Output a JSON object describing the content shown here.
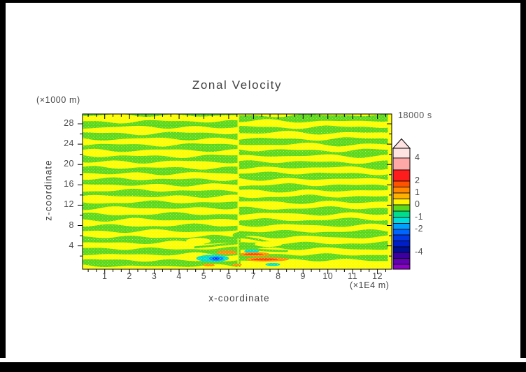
{
  "title": "Zonal Velocity",
  "time_label": "18000 s",
  "axes": {
    "x": {
      "label": "x-coordinate",
      "unit": "(×1E4 m)",
      "tick_labels": [
        "1",
        "2",
        "3",
        "4",
        "5",
        "6",
        "7",
        "8",
        "9",
        "10",
        "11",
        "12"
      ],
      "tick_values": [
        1,
        2,
        3,
        4,
        5,
        6,
        7,
        8,
        9,
        10,
        11,
        12
      ],
      "minor_step": 0.3333
    },
    "y": {
      "label": "z-coordinate",
      "unit": "(×1000 m)",
      "tick_labels": [
        "4",
        "8",
        "12",
        "16",
        "20",
        "24",
        "28"
      ],
      "tick_values": [
        4,
        8,
        12,
        16,
        20,
        24,
        28
      ],
      "minor_values": [
        2,
        6,
        10,
        14,
        18,
        22,
        26,
        30
      ]
    }
  },
  "colorbar": {
    "tick_labels": [
      {
        "text": "4",
        "py": 226
      },
      {
        "text": "2",
        "py": 259
      },
      {
        "text": "1",
        "py": 276
      },
      {
        "text": "0",
        "py": 293
      },
      {
        "text": "-1",
        "py": 311
      },
      {
        "text": "-2",
        "py": 328
      },
      {
        "text": "-4",
        "py": 361
      }
    ],
    "arrow_color": "#FFE2E2",
    "segments": [
      {
        "color": "#FFE2E2",
        "h": 14
      },
      {
        "color": "#FFA8A8",
        "h": 17
      },
      {
        "color": "#FF1C1C",
        "h": 16
      },
      {
        "color": "#FF5200",
        "h": 8.5
      },
      {
        "color": "#FF8800",
        "h": 8.5
      },
      {
        "color": "#FFB000",
        "h": 8.5
      },
      {
        "color": "#FCF400",
        "h": 8.5
      },
      {
        "color": "#5CD81A",
        "h": 9
      },
      {
        "color": "#00DC8C",
        "h": 9
      },
      {
        "color": "#00DCDC",
        "h": 8.5
      },
      {
        "color": "#00A0FF",
        "h": 8.5
      },
      {
        "color": "#0064FF",
        "h": 8
      },
      {
        "color": "#0038E6",
        "h": 8.5
      },
      {
        "color": "#001EC8",
        "h": 8.5
      },
      {
        "color": "#000F96",
        "h": 8
      },
      {
        "color": "#3C00A0",
        "h": 8.5
      },
      {
        "color": "#6400B4",
        "h": 8.5
      },
      {
        "color": "#8C00C8",
        "h": 7
      }
    ]
  },
  "chart_data": {
    "type": "heatmap",
    "title": "Zonal Velocity",
    "xlabel": "x-coordinate (×1E4 m)",
    "ylabel": "z-coordinate (×1000 m)",
    "time": "18000 s",
    "x_range": [
      0.105,
      12.575
    ],
    "z_range": [
      -0.59,
      29.93
    ],
    "contour_levels_labeled": [
      4,
      2,
      1,
      0,
      -1,
      -2,
      -4
    ],
    "colors": {
      "positive_background": "#FDFD00",
      "negative_band": "#5CD81A",
      "grid_dots": "#FFFFFF"
    },
    "bands": {
      "half_width": 0.56,
      "seam_x": 6.42,
      "left_centers": [
        0.6,
        2.9,
        5.2,
        7.45,
        9.7,
        12.0,
        14.3,
        16.55,
        18.8,
        21.1,
        23.35,
        25.6,
        27.9,
        30.2
      ],
      "right_centers": [
        1.75,
        4.0,
        6.3,
        8.6,
        10.85,
        13.15,
        15.4,
        17.7,
        19.95,
        22.25,
        24.5,
        26.8,
        29.1
      ]
    },
    "fan": {
      "trunk": {
        "x": 6.44,
        "z_top": 6.4,
        "w": 2.5
      },
      "crown": {
        "cx": 6.44,
        "cz": 6.1,
        "rx": 0.28,
        "rz": 0.6
      },
      "fronds": [
        {
          "x1": 6.38,
          "z1": 5.7,
          "cx": 5.8,
          "cz": 5.5,
          "x2": 5.05,
          "z2": 4.5,
          "w": 3
        },
        {
          "x1": 6.32,
          "z1": 4.5,
          "cx": 5.6,
          "cz": 4.15,
          "x2": 4.65,
          "z2": 3.7,
          "w": 3
        },
        {
          "x1": 6.3,
          "z1": 3.4,
          "cx": 5.6,
          "cz": 3.0,
          "x2": 4.6,
          "z2": 2.95,
          "w": 3
        },
        {
          "x1": 6.5,
          "z1": 5.7,
          "cx": 7.05,
          "cz": 5.5,
          "x2": 7.75,
          "z2": 4.55,
          "w": 3
        },
        {
          "x1": 6.55,
          "z1": 4.55,
          "cx": 7.3,
          "cz": 4.2,
          "x2": 8.3,
          "z2": 3.8,
          "w": 3
        },
        {
          "x1": 6.58,
          "z1": 3.5,
          "cx": 7.3,
          "cz": 3.05,
          "x2": 8.35,
          "z2": 3.0,
          "w": 3
        }
      ]
    },
    "blobs": [
      {
        "cx": 5.35,
        "cz": 1.55,
        "rx": 0.66,
        "rz": 0.7,
        "color": "#00DFC8"
      },
      {
        "cx": 5.5,
        "cz": 1.5,
        "rx": 0.3,
        "rz": 0.42,
        "color": "#008CFF"
      },
      {
        "cx": 5.48,
        "cz": 1.5,
        "rx": 0.13,
        "rz": 0.2,
        "color": "#0030FF"
      },
      {
        "cx": 5.92,
        "cz": 2.7,
        "rx": 0.42,
        "rz": 0.38,
        "color": "#FF9100"
      },
      {
        "cx": 6.93,
        "cz": 2.95,
        "rx": 0.3,
        "rz": 0.33,
        "color": "#00DFC8"
      },
      {
        "cx": 7.05,
        "cz": 2.35,
        "rx": 0.62,
        "rz": 0.4,
        "color": "#FF9100"
      },
      {
        "cx": 7.0,
        "cz": 2.35,
        "rx": 0.4,
        "rz": 0.18,
        "color": "#FF4000"
      },
      {
        "cx": 7.55,
        "cz": 1.35,
        "rx": 0.88,
        "rz": 0.42,
        "color": "#FF9100"
      },
      {
        "cx": 7.45,
        "cz": 1.35,
        "rx": 0.55,
        "rz": 0.2,
        "color": "#FF4000"
      },
      {
        "cx": 7.78,
        "cz": 0.35,
        "rx": 0.3,
        "rz": 0.3,
        "color": "#00DFC8"
      },
      {
        "cx": 5.2,
        "cz": 0.22,
        "rx": 0.24,
        "rz": 0.25,
        "color": "#FF9100"
      },
      {
        "cx": 6.33,
        "cz": 0.28,
        "rx": 0.2,
        "rz": 0.22,
        "color": "#FF9100"
      }
    ],
    "yellow_eyes": [
      {
        "cx": 4.78,
        "cz": 4.95,
        "rx": 0.5,
        "rz": 0.62
      },
      {
        "cx": 7.6,
        "cz": 4.35,
        "rx": 0.55,
        "rz": 0.55
      }
    ]
  }
}
